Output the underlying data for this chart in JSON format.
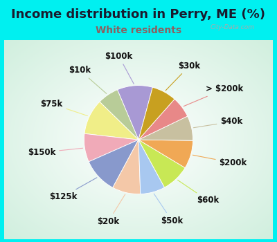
{
  "title": "Income distribution in Perry, ME (%)",
  "subtitle": "White residents",
  "title_color": "#1a1a2e",
  "subtitle_color": "#8b6060",
  "bg_cyan": "#00f0f0",
  "bg_chart_color": "#d0ece0",
  "watermark": "City-Data.com",
  "labels": [
    "$100k",
    "$10k",
    "$75k",
    "$150k",
    "$125k",
    "$20k",
    "$50k",
    "$60k",
    "$200k",
    "$40k",
    "> $200k",
    "$30k"
  ],
  "values": [
    10,
    6,
    10,
    8,
    10,
    8,
    7,
    8,
    8,
    7,
    6,
    7
  ],
  "colors": [
    "#a899d4",
    "#b8cc98",
    "#f0ee88",
    "#f0aab8",
    "#8899cc",
    "#f4c8a8",
    "#a8c8f0",
    "#c8e855",
    "#f0a855",
    "#c8c0a0",
    "#e88888",
    "#c8a020"
  ],
  "label_fontsize": 8.5,
  "title_fontsize": 13,
  "subtitle_fontsize": 10,
  "startangle": 75,
  "line_colors": [
    "#a899d4",
    "#b8cc98",
    "#f0ee88",
    "#f0aab8",
    "#8899cc",
    "#f4c8a8",
    "#a8c8f0",
    "#c8e855",
    "#f0a855",
    "#c8c0a0",
    "#e88888",
    "#c8a020"
  ]
}
